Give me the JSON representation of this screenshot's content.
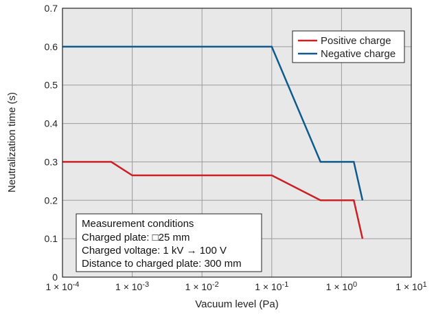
{
  "chart_data": {
    "type": "line",
    "xscale": "log",
    "xlim": [
      0.0001,
      10
    ],
    "ylim": [
      0,
      0.7
    ],
    "grid": true,
    "legend_position": "top-right",
    "xlabel": "Vacuum level (Pa)",
    "ylabel": "Neutralization time (s)",
    "x_ticks": [
      {
        "value": 0.0001,
        "base": "1 × 10",
        "exp": "-4"
      },
      {
        "value": 0.001,
        "base": "1 × 10",
        "exp": "-3"
      },
      {
        "value": 0.01,
        "base": "1 × 10",
        "exp": "-2"
      },
      {
        "value": 0.1,
        "base": "1 × 10",
        "exp": "-1"
      },
      {
        "value": 1,
        "base": "1 × 10",
        "exp": "0"
      },
      {
        "value": 10,
        "base": "1 × 10",
        "exp": "1"
      }
    ],
    "y_ticks": [
      {
        "value": 0,
        "label": "0"
      },
      {
        "value": 0.1,
        "label": "0.1"
      },
      {
        "value": 0.2,
        "label": "0.2"
      },
      {
        "value": 0.3,
        "label": "0.3"
      },
      {
        "value": 0.4,
        "label": "0.4"
      },
      {
        "value": 0.5,
        "label": "0.5"
      },
      {
        "value": 0.6,
        "label": "0.6"
      },
      {
        "value": 0.7,
        "label": "0.7"
      }
    ],
    "series": [
      {
        "name": "Positive charge",
        "color": "#cc1f24",
        "x": [
          0.0001,
          0.0005,
          0.001,
          0.1,
          0.5,
          1.5,
          2
        ],
        "y": [
          0.3,
          0.3,
          0.265,
          0.265,
          0.2,
          0.2,
          0.1
        ]
      },
      {
        "name": "Negative charge",
        "color": "#0f5a8c",
        "x": [
          0.0001,
          0.1,
          0.5,
          1.5,
          2
        ],
        "y": [
          0.6,
          0.6,
          0.3,
          0.3,
          0.2
        ]
      }
    ],
    "annotation": {
      "lines": [
        "Measurement conditions",
        "Charged plate: □25 mm",
        "Charged voltage: 1 kV → 100 V",
        "Distance to charged plate: 300 mm"
      ]
    }
  }
}
